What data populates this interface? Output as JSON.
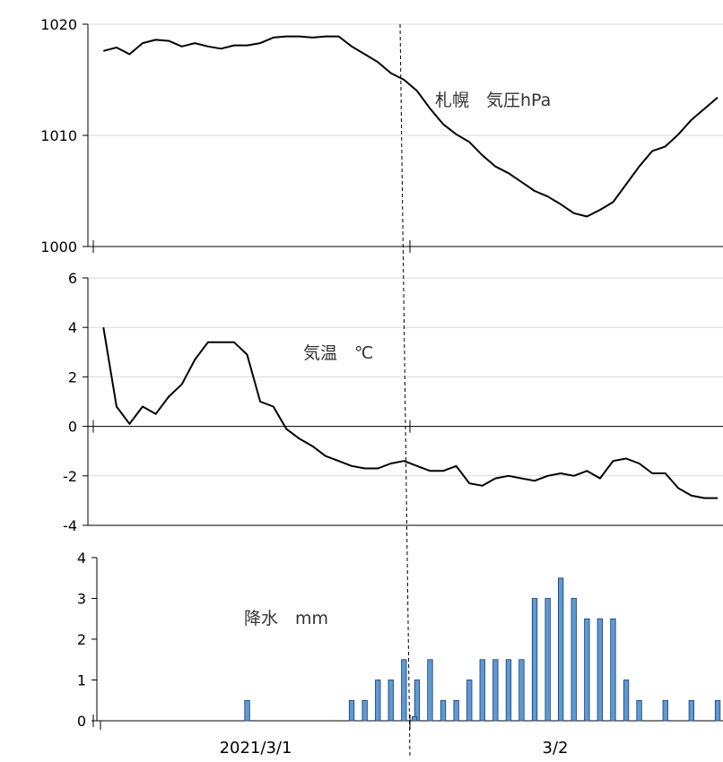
{
  "chart_data": [
    {
      "type": "line",
      "title": "札幌　気圧hPa",
      "ylim": [
        1000,
        1020
      ],
      "yticks": [
        1000,
        1010,
        1020
      ],
      "grid": true,
      "x": [
        0,
        1,
        2,
        3,
        4,
        5,
        6,
        7,
        8,
        9,
        10,
        11,
        12,
        13,
        14,
        15,
        16,
        17,
        18,
        19,
        20,
        21,
        22,
        23,
        24,
        25,
        26,
        27,
        28,
        29,
        30,
        31,
        32,
        33,
        34,
        35,
        36,
        37,
        38,
        39,
        40,
        41,
        42,
        43,
        44,
        45,
        46,
        47
      ],
      "values": [
        1017.6,
        1017.9,
        1017.3,
        1018.3,
        1018.6,
        1018.5,
        1018.0,
        1018.3,
        1018.0,
        1017.8,
        1018.1,
        1018.1,
        1018.3,
        1018.8,
        1018.9,
        1018.9,
        1018.8,
        1018.9,
        1018.9,
        1018.0,
        1017.3,
        1016.6,
        1015.6,
        1015.0,
        1014.0,
        1012.4,
        1011.0,
        1010.1,
        1009.4,
        1008.2,
        1007.2,
        1006.6,
        1005.8,
        1005.0,
        1004.5,
        1003.8,
        1003.0,
        1002.7,
        1003.3,
        1004.0,
        1005.6,
        1007.2,
        1008.6,
        1009.0,
        1010.1,
        1011.4,
        1012.4,
        1013.4
      ],
      "xlim": [
        -0.5,
        47
      ]
    },
    {
      "type": "line",
      "title": "気温　℃",
      "ylim": [
        -4,
        6
      ],
      "yticks": [
        -4,
        -2,
        0,
        2,
        4,
        6
      ],
      "grid": true,
      "x": [
        0,
        1,
        2,
        3,
        4,
        5,
        6,
        7,
        8,
        9,
        10,
        11,
        12,
        13,
        14,
        15,
        16,
        17,
        18,
        19,
        20,
        21,
        22,
        23,
        24,
        25,
        26,
        27,
        28,
        29,
        30,
        31,
        32,
        33,
        34,
        35,
        36,
        37,
        38,
        39,
        40,
        41,
        42,
        43,
        44,
        45,
        46,
        47
      ],
      "values": [
        4.0,
        0.8,
        0.1,
        0.8,
        0.5,
        1.2,
        1.7,
        2.7,
        3.4,
        3.4,
        3.4,
        2.9,
        1.0,
        0.8,
        -0.1,
        -0.5,
        -0.8,
        -1.2,
        -1.4,
        -1.6,
        -1.7,
        -1.7,
        -1.5,
        -1.4,
        -1.6,
        -1.8,
        -1.8,
        -1.6,
        -2.3,
        -2.4,
        -2.1,
        -2.0,
        -2.1,
        -2.2,
        -2.0,
        -1.9,
        -2.0,
        -1.8,
        -2.1,
        -1.4,
        -1.3,
        -1.5,
        -1.9,
        -1.9,
        -2.5,
        -2.8,
        -2.9,
        -2.9
      ],
      "xlim": [
        -0.5,
        47
      ]
    },
    {
      "type": "bar",
      "title": "降水　mm",
      "ylim": [
        0,
        4
      ],
      "yticks": [
        0,
        1,
        2,
        3,
        4
      ],
      "grid": false,
      "x": [
        0,
        1,
        2,
        3,
        4,
        5,
        6,
        7,
        8,
        9,
        10,
        11,
        12,
        13,
        14,
        15,
        16,
        17,
        18,
        19,
        20,
        21,
        22,
        23,
        24,
        25,
        26,
        27,
        28,
        29,
        30,
        31,
        32,
        33,
        34,
        35,
        36,
        37,
        38,
        39,
        40,
        41,
        42,
        43,
        44,
        45,
        46,
        47
      ],
      "values": [
        0,
        0,
        0,
        0,
        0,
        0,
        0,
        0,
        0,
        0,
        0,
        0.5,
        0,
        0,
        0,
        0,
        0,
        0,
        0,
        0.5,
        0.5,
        1.0,
        1.0,
        1.5,
        1.0,
        1.5,
        0.5,
        0.5,
        1.0,
        1.5,
        1.5,
        1.5,
        1.5,
        3.0,
        3.0,
        3.5,
        3.0,
        2.5,
        2.5,
        2.5,
        1.0,
        0.5,
        0,
        0.5,
        0,
        0.5,
        0,
        0.5
      ],
      "extra_bars": [
        {
          "x": 23.8,
          "value": 0.1
        }
      ],
      "xlim": [
        -0.5,
        47
      ]
    }
  ],
  "date_labels": {
    "day1": "2021/3/1",
    "day2": "3/2"
  }
}
